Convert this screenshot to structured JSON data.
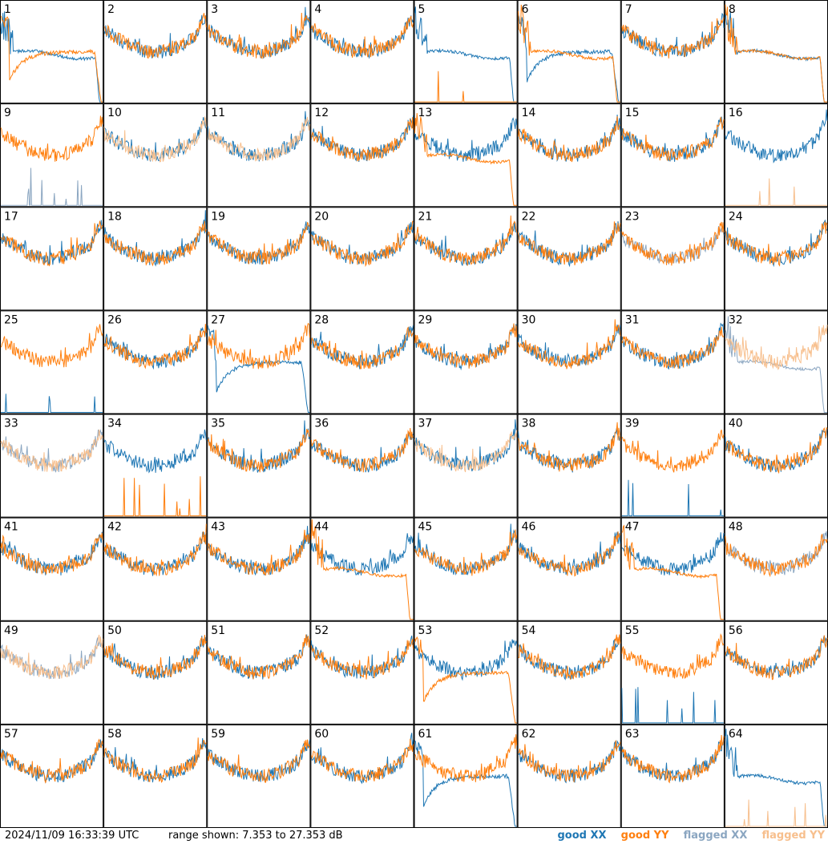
{
  "footer": {
    "timestamp": "2024/11/09 16:33:39 UTC",
    "range_text": "range shown: 7.353 to 27.353 dB"
  },
  "legend": [
    {
      "label": "good XX",
      "color": "#1f77b4"
    },
    {
      "label": "good YY",
      "color": "#ff7f0e"
    },
    {
      "label": "flagged XX",
      "color": "#8ba6c1"
    },
    {
      "label": "flagged YY",
      "color": "#f7bf8d"
    }
  ],
  "chart_data": {
    "type": "line",
    "grid": "8x8 small multiples, one panel per input",
    "y_range_db": [
      7.353,
      27.353
    ],
    "panels": [
      {
        "id": "1",
        "xx": "flat",
        "yy": "sag"
      },
      {
        "id": "2",
        "xx": "good",
        "yy": "good"
      },
      {
        "id": "3",
        "xx": "good",
        "yy": "good"
      },
      {
        "id": "4",
        "xx": "good",
        "yy": "good"
      },
      {
        "id": "5",
        "xx": "flat",
        "yy": "spikes"
      },
      {
        "id": "6",
        "xx": "sag",
        "yy": "flat"
      },
      {
        "id": "7",
        "xx": "good",
        "yy": "good"
      },
      {
        "id": "8",
        "xx": "flat",
        "yy": "flat"
      },
      {
        "id": "9",
        "xx": "flag-spikes",
        "yy": "good"
      },
      {
        "id": "10",
        "xx": "good",
        "yy": "flag-good"
      },
      {
        "id": "11",
        "xx": "good",
        "yy": "flag-good"
      },
      {
        "id": "12",
        "xx": "good",
        "yy": "good"
      },
      {
        "id": "13",
        "xx": "good",
        "yy": "flat"
      },
      {
        "id": "14",
        "xx": "good",
        "yy": "good"
      },
      {
        "id": "15",
        "xx": "good",
        "yy": "good"
      },
      {
        "id": "16",
        "xx": "good",
        "yy": "flag-spikes"
      },
      {
        "id": "17",
        "xx": "good",
        "yy": "good"
      },
      {
        "id": "18",
        "xx": "good",
        "yy": "good"
      },
      {
        "id": "19",
        "xx": "good",
        "yy": "good"
      },
      {
        "id": "20",
        "xx": "good",
        "yy": "good"
      },
      {
        "id": "21",
        "xx": "good",
        "yy": "good"
      },
      {
        "id": "22",
        "xx": "good",
        "yy": "good"
      },
      {
        "id": "23",
        "xx": "flag-noise",
        "yy": "good"
      },
      {
        "id": "24",
        "xx": "good",
        "yy": "good"
      },
      {
        "id": "25",
        "xx": "spikes",
        "yy": "good"
      },
      {
        "id": "26",
        "xx": "good",
        "yy": "good"
      },
      {
        "id": "27",
        "xx": "sag",
        "yy": "good"
      },
      {
        "id": "28",
        "xx": "good",
        "yy": "good"
      },
      {
        "id": "29",
        "xx": "good",
        "yy": "good"
      },
      {
        "id": "30",
        "xx": "good",
        "yy": "good"
      },
      {
        "id": "31",
        "xx": "good",
        "yy": "good"
      },
      {
        "id": "32",
        "xx": "flag-flat",
        "yy": "flag-good"
      },
      {
        "id": "33",
        "xx": "flag-good",
        "yy": "flag-good"
      },
      {
        "id": "34",
        "xx": "good",
        "yy": "spikes"
      },
      {
        "id": "35",
        "xx": "good",
        "yy": "good"
      },
      {
        "id": "36",
        "xx": "good",
        "yy": "good"
      },
      {
        "id": "37",
        "xx": "good",
        "yy": "flag-good"
      },
      {
        "id": "38",
        "xx": "good",
        "yy": "good"
      },
      {
        "id": "39",
        "xx": "spikes",
        "yy": "good"
      },
      {
        "id": "40",
        "xx": "good",
        "yy": "good"
      },
      {
        "id": "41",
        "xx": "good",
        "yy": "good"
      },
      {
        "id": "42",
        "xx": "good",
        "yy": "good"
      },
      {
        "id": "43",
        "xx": "good",
        "yy": "good"
      },
      {
        "id": "44",
        "xx": "good",
        "yy": "flat"
      },
      {
        "id": "45",
        "xx": "good",
        "yy": "good"
      },
      {
        "id": "46",
        "xx": "good",
        "yy": "good"
      },
      {
        "id": "47",
        "xx": "good",
        "yy": "flat"
      },
      {
        "id": "48",
        "xx": "flag-good",
        "yy": "good"
      },
      {
        "id": "49",
        "xx": "flag-good",
        "yy": "flag-good"
      },
      {
        "id": "50",
        "xx": "good",
        "yy": "good"
      },
      {
        "id": "51",
        "xx": "good",
        "yy": "good"
      },
      {
        "id": "52",
        "xx": "good",
        "yy": "good"
      },
      {
        "id": "53",
        "xx": "good",
        "yy": "sag"
      },
      {
        "id": "54",
        "xx": "good",
        "yy": "good"
      },
      {
        "id": "55",
        "xx": "spikes",
        "yy": "good"
      },
      {
        "id": "56",
        "xx": "good",
        "yy": "good"
      },
      {
        "id": "57",
        "xx": "good",
        "yy": "good"
      },
      {
        "id": "58",
        "xx": "good",
        "yy": "good"
      },
      {
        "id": "59",
        "xx": "good",
        "yy": "good"
      },
      {
        "id": "60",
        "xx": "good",
        "yy": "good"
      },
      {
        "id": "61",
        "xx": "sag",
        "yy": "good"
      },
      {
        "id": "62",
        "xx": "good",
        "yy": "good"
      },
      {
        "id": "63",
        "xx": "good",
        "yy": "good"
      },
      {
        "id": "64",
        "xx": "flat",
        "yy": "flag-spikes"
      }
    ]
  }
}
